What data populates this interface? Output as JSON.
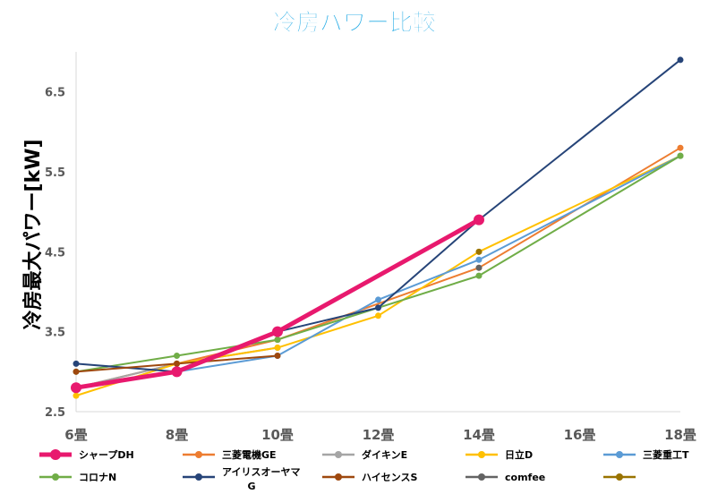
{
  "chart_data": {
    "type": "line",
    "title": "冷房パワー比較",
    "xlabel": "",
    "ylabel": "冷房最大パワー[kW]",
    "categories": [
      "6畳",
      "8畳",
      "10畳",
      "12畳",
      "14畳",
      "16畳",
      "18畳"
    ],
    "ylim": [
      2.5,
      7.0
    ],
    "yticks": [
      "2.5",
      "3.5",
      "4.5",
      "5.5",
      "6.5"
    ],
    "ytick_values": [
      2.5,
      3.5,
      4.5,
      5.5,
      6.5
    ],
    "grid": false,
    "legend_position": "bottom",
    "series": [
      {
        "name": "シャープDH",
        "color": "#e8196e",
        "emphasis": true,
        "values": [
          2.8,
          3.0,
          3.5,
          null,
          4.9,
          null,
          null
        ]
      },
      {
        "name": "三菱電機GE",
        "color": "#ed7d31",
        "values": [
          2.8,
          3.1,
          3.4,
          null,
          4.3,
          null,
          5.8
        ]
      },
      {
        "name": "ダイキンE",
        "color": "#a5a5a5",
        "values": [
          2.8,
          3.1,
          3.3,
          null,
          null,
          null,
          null
        ]
      },
      {
        "name": "日立D",
        "color": "#ffc000",
        "values": [
          2.7,
          3.1,
          3.3,
          3.7,
          4.5,
          null,
          5.7
        ]
      },
      {
        "name": "三菱重工T",
        "color": "#5b9bd5",
        "values": [
          2.8,
          3.0,
          3.2,
          3.9,
          4.4,
          null,
          5.7
        ]
      },
      {
        "name": "コロナN",
        "color": "#70ad47",
        "values": [
          3.0,
          3.2,
          3.4,
          null,
          4.2,
          null,
          5.7
        ]
      },
      {
        "name": "アイリスオーヤマG",
        "color": "#264478",
        "values": [
          3.1,
          3.0,
          3.5,
          3.8,
          4.9,
          null,
          6.9
        ]
      },
      {
        "name": "ハイセンスS",
        "color": "#9e480e",
        "values": [
          3.0,
          3.1,
          3.2,
          null,
          null,
          null,
          null
        ]
      },
      {
        "name": "comfee",
        "color": "#636363",
        "values": [
          null,
          null,
          null,
          null,
          4.3,
          null,
          null
        ]
      },
      {
        "name": "",
        "color": "#997300",
        "values": [
          null,
          null,
          null,
          null,
          4.5,
          null,
          null
        ]
      }
    ]
  }
}
